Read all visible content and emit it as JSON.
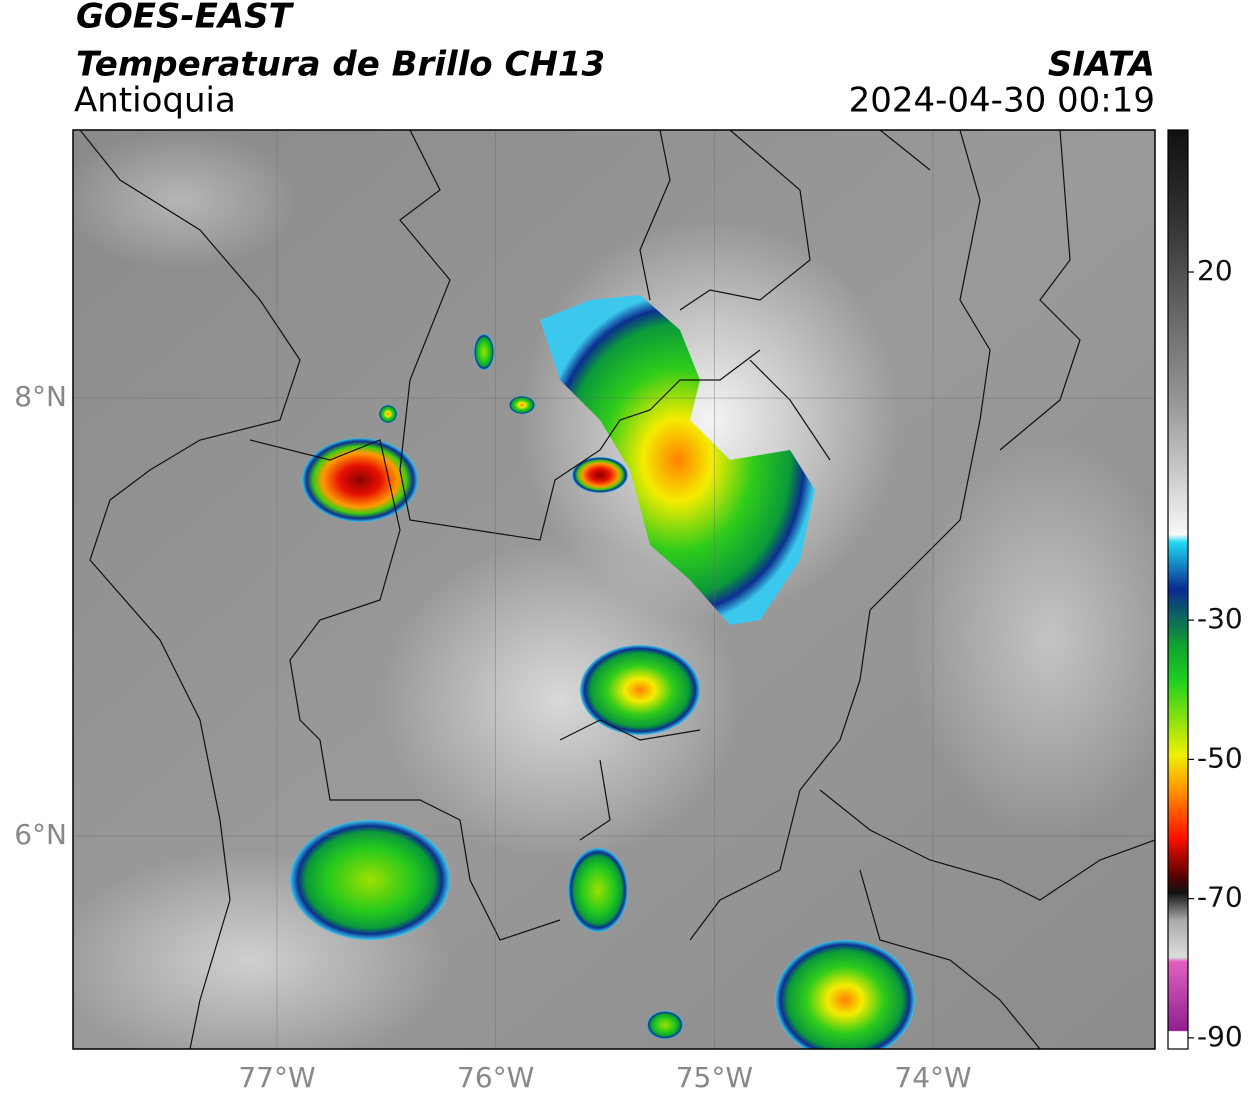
{
  "header": {
    "title": "GOES-EAST",
    "subtitle": "Temperatura de Brillo CH13",
    "region": "Antioquia",
    "source": "SIATA",
    "timestamp": "2024-04-30 00:19"
  },
  "map": {
    "lonlim": [
      -77.933,
      -72.985
    ],
    "latlim": [
      5.027,
      9.224
    ],
    "lat_ticks": [
      {
        "value": 8,
        "label": "8°N"
      },
      {
        "value": 6,
        "label": "6°N"
      }
    ],
    "lon_ticks": [
      {
        "value": -77,
        "label": "77°W"
      },
      {
        "value": -76,
        "label": "76°W"
      },
      {
        "value": -75,
        "label": "75°W"
      },
      {
        "value": -74,
        "label": "74°W"
      }
    ]
  },
  "colorbar": {
    "clim": [
      -91.6,
      40.4
    ],
    "ticks": [
      20,
      -30,
      -50,
      -70,
      -90
    ]
  }
}
